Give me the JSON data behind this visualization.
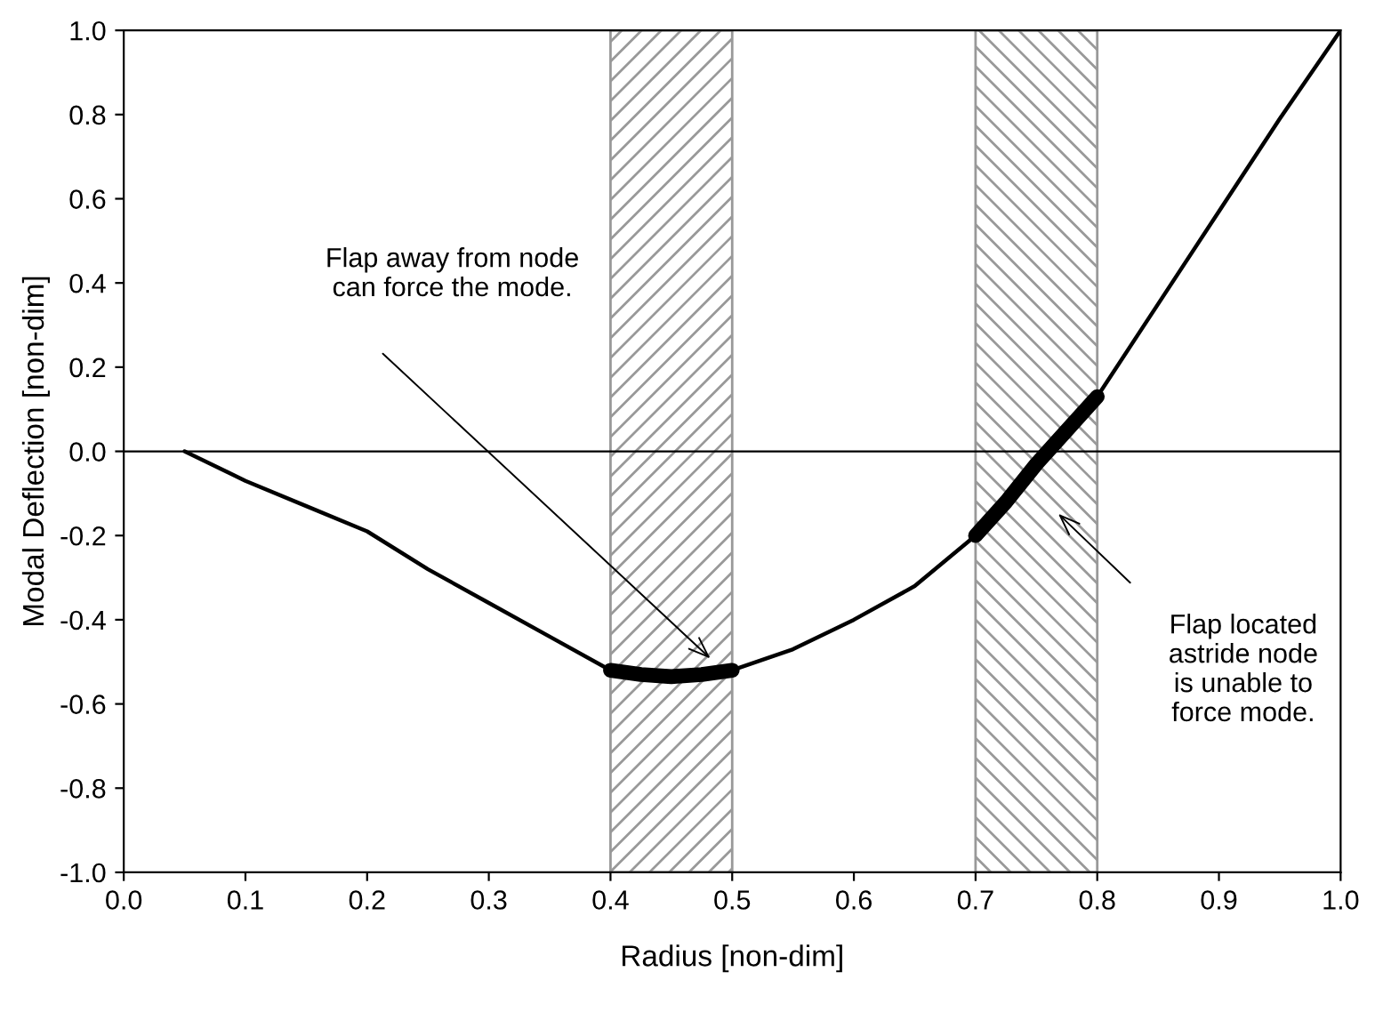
{
  "chart_data": {
    "type": "line",
    "xlabel": "Radius [non-dim]",
    "ylabel": "Modal Deflection [non-dim]",
    "xlim": [
      0,
      1
    ],
    "ylim": [
      -1,
      1
    ],
    "xticks": [
      {
        "value": 0,
        "label": "0.0"
      },
      0.1,
      0.2,
      0.3,
      0.4,
      0.5,
      0.6,
      0.7,
      0.8,
      0.9,
      {
        "value": 1,
        "label": "1.0"
      }
    ],
    "yticks": [
      {
        "value": -1,
        "label": "-1.0"
      },
      -0.8,
      -0.6,
      -0.4,
      -0.2,
      {
        "value": 0,
        "label": "0.0"
      },
      0.2,
      0.4,
      0.6,
      0.8,
      {
        "value": 1,
        "label": "1.0"
      }
    ],
    "series": [
      {
        "color": "#000000",
        "x": [
          0.05,
          0.1,
          0.15,
          0.2,
          0.25,
          0.3,
          0.35,
          0.4,
          0.45,
          0.5,
          0.55,
          0.6,
          0.65,
          0.7,
          0.75,
          0.8,
          0.85,
          0.9,
          0.95,
          1.0
        ],
        "values": [
          0,
          -0.07,
          -0.13,
          -0.19,
          -0.28,
          -0.36,
          -0.44,
          -0.52,
          -0.535,
          -0.52,
          -0.47,
          -0.4,
          -0.32,
          -0.2,
          -0.03,
          0.13,
          0.35,
          0.57,
          0.79,
          1.0
        ]
      },
      {
        "color": "#000000",
        "x": [
          0.4,
          0.425,
          0.45,
          0.475,
          0.5
        ],
        "values": [
          -0.52,
          -0.53,
          -0.535,
          -0.53,
          -0.52
        ]
      },
      {
        "color": "#000000",
        "x": [
          0.7,
          0.725,
          0.75,
          0.775,
          0.8
        ],
        "values": [
          -0.2,
          -0.12,
          -0.03,
          0.05,
          0.13
        ]
      }
    ],
    "ref_lines": [
      {
        "axis": "y",
        "value": 0,
        "color": "#000000"
      }
    ],
    "bands": [
      {
        "axis": "x",
        "from": 0.4,
        "to": 0.5,
        "color": "#999999"
      },
      {
        "axis": "x",
        "from": 0.7,
        "to": 0.8,
        "color": "#999999"
      }
    ],
    "annotations": [
      "Flap away from node\ncan force the mode.",
      "Flap located\nastride node\nis unable to\nforce mode."
    ],
    "grid": false,
    "marker": "none",
    "line_style": "solid"
  }
}
